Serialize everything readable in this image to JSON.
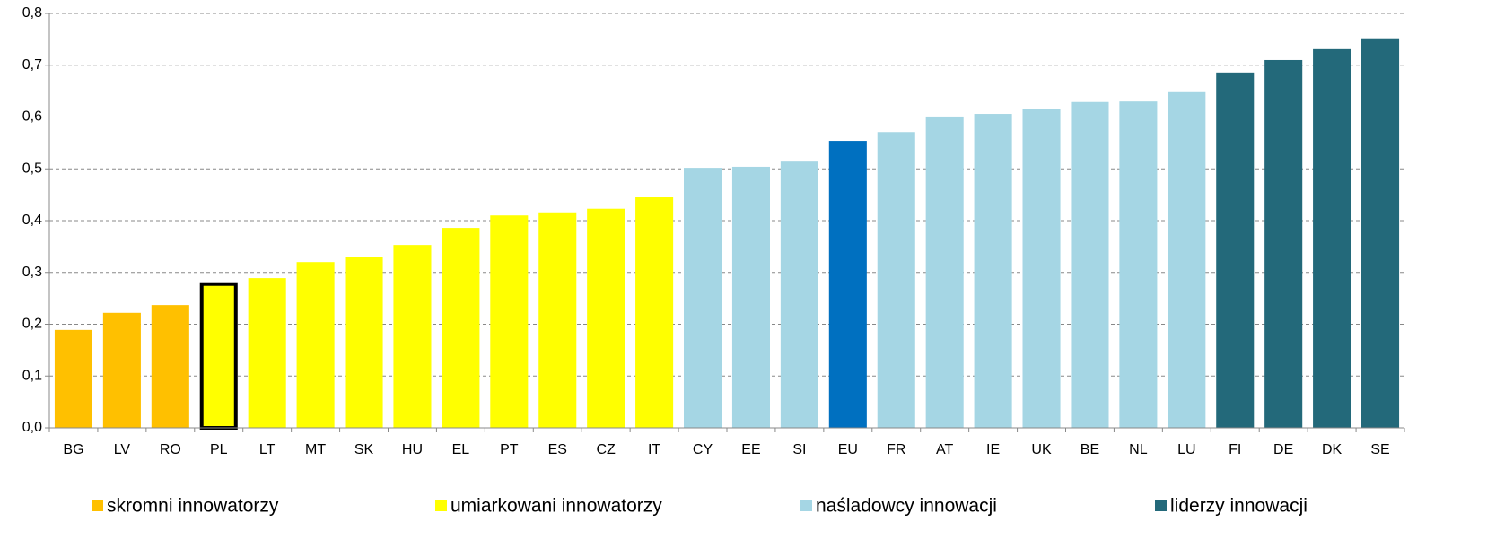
{
  "chart_data": {
    "type": "bar",
    "categories": [
      "BG",
      "LV",
      "RO",
      "PL",
      "LT",
      "MT",
      "SK",
      "HU",
      "EL",
      "PT",
      "ES",
      "CZ",
      "IT",
      "CY",
      "EE",
      "SI",
      "EU",
      "FR",
      "AT",
      "IE",
      "UK",
      "BE",
      "NL",
      "LU",
      "FI",
      "DE",
      "DK",
      "SE"
    ],
    "values": [
      0.189,
      0.222,
      0.237,
      0.281,
      0.289,
      0.32,
      0.329,
      0.353,
      0.386,
      0.41,
      0.416,
      0.423,
      0.445,
      0.502,
      0.504,
      0.514,
      0.554,
      0.571,
      0.601,
      0.606,
      0.615,
      0.629,
      0.63,
      0.648,
      0.686,
      0.71,
      0.731,
      0.752
    ],
    "colors": [
      "#ffc000",
      "#ffc000",
      "#ffc000",
      "#ffff00",
      "#ffff00",
      "#ffff00",
      "#ffff00",
      "#ffff00",
      "#ffff00",
      "#ffff00",
      "#ffff00",
      "#ffff00",
      "#ffff00",
      "#a5d6e4",
      "#a5d6e4",
      "#a5d6e4",
      "#0070c0",
      "#a5d6e4",
      "#a5d6e4",
      "#a5d6e4",
      "#a5d6e4",
      "#a5d6e4",
      "#a5d6e4",
      "#a5d6e4",
      "#23697a",
      "#23697a",
      "#23697a",
      "#23697a"
    ],
    "outline": {
      "index": 3,
      "color": "#000000"
    },
    "ylim": [
      0,
      0.8
    ],
    "yticks": [
      {
        "value": 0,
        "label": "0,0"
      },
      {
        "value": 0.1,
        "label": "0,1"
      },
      {
        "value": 0.2,
        "label": "0,2"
      },
      {
        "value": 0.3,
        "label": "0,3"
      },
      {
        "value": 0.4,
        "label": "0,4"
      },
      {
        "value": 0.5,
        "label": "0,5"
      },
      {
        "value": 0.6,
        "label": "0,6"
      },
      {
        "value": 0.7,
        "label": "0,7"
      },
      {
        "value": 0.8,
        "label": "0,8"
      }
    ],
    "grid": true,
    "legend": [
      {
        "name": "skromni innowatorzy",
        "color": "#ffc000"
      },
      {
        "name": "umiarkowani innowatorzy",
        "color": "#ffff00"
      },
      {
        "name": "naśladowcy innowacji",
        "color": "#a5d6e4"
      },
      {
        "name": "liderzy innowacji",
        "color": "#23697a"
      }
    ]
  }
}
